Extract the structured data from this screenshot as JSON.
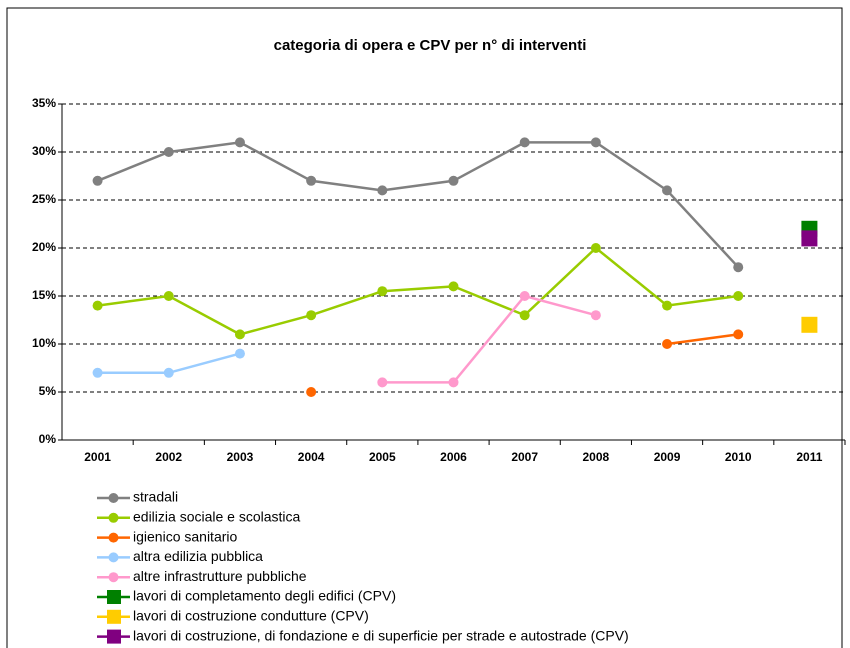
{
  "chart_data": {
    "type": "line",
    "title": "categoria di opera e CPV per n° di interventi",
    "categories": [
      "2001",
      "2002",
      "2003",
      "2004",
      "2005",
      "2006",
      "2007",
      "2008",
      "2009",
      "2010",
      "2011"
    ],
    "series": [
      {
        "name": "stradali",
        "color": "#808080",
        "marker": "circle",
        "values": [
          27,
          30,
          31,
          27,
          26,
          27,
          31,
          31,
          26,
          18,
          null
        ]
      },
      {
        "name": "edilizia sociale e scolastica",
        "color": "#99cc00",
        "marker": "circle",
        "values": [
          14,
          15,
          11,
          13,
          15.5,
          16,
          13,
          20,
          14,
          15,
          null
        ]
      },
      {
        "name": "igienico sanitario",
        "color": "#ff6600",
        "marker": "circle",
        "values": [
          null,
          null,
          null,
          5,
          null,
          null,
          null,
          null,
          10,
          11,
          null
        ]
      },
      {
        "name": "altra edilizia pubblica",
        "color": "#99ccff",
        "marker": "circle",
        "values": [
          7,
          7,
          9,
          null,
          null,
          null,
          null,
          null,
          null,
          null,
          null
        ]
      },
      {
        "name": "altre infrastrutture pubbliche",
        "color": "#ff99cc",
        "marker": "circle",
        "values": [
          null,
          null,
          null,
          null,
          6,
          6,
          15,
          13,
          null,
          null,
          null
        ]
      },
      {
        "name": "lavori di completamento degli edifici (CPV)",
        "color": "#008000",
        "marker": "square",
        "values": [
          null,
          null,
          null,
          null,
          null,
          null,
          null,
          null,
          null,
          null,
          22
        ]
      },
      {
        "name": "lavori di costruzione condutture (CPV)",
        "color": "#ffcc00",
        "marker": "square",
        "values": [
          null,
          null,
          null,
          null,
          null,
          null,
          null,
          null,
          null,
          null,
          12
        ]
      },
      {
        "name": "lavori di costruzione, di fondazione e di superficie per strade e autostrade (CPV)",
        "color": "#800080",
        "marker": "square",
        "values": [
          null,
          null,
          null,
          null,
          null,
          null,
          null,
          null,
          null,
          null,
          21
        ]
      }
    ],
    "ylim": [
      0,
      35
    ],
    "yticks": [
      {
        "value": 0,
        "label": "0%"
      },
      {
        "value": 5,
        "label": "5%"
      },
      {
        "value": 10,
        "label": "10%"
      },
      {
        "value": 15,
        "label": "15%"
      },
      {
        "value": 20,
        "label": "20%"
      },
      {
        "value": 25,
        "label": "25%"
      },
      {
        "value": 30,
        "label": "30%"
      },
      {
        "value": 35,
        "label": "35%"
      }
    ],
    "grid": true,
    "legend": "bottom-left"
  }
}
